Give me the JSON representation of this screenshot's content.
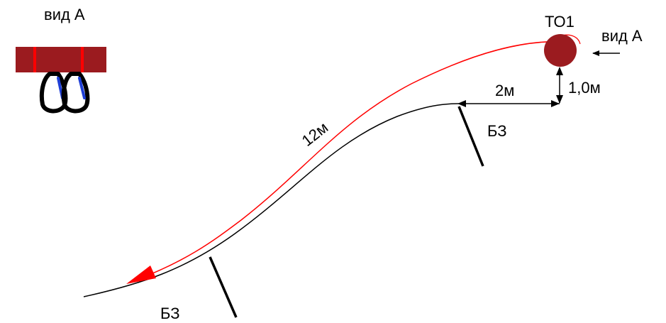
{
  "inset": {
    "view_label": "вид А"
  },
  "labels": {
    "tree_label": "ТО1",
    "view_arrow_label": "вид А",
    "length_label": "12м",
    "horizontal_distance": "2м",
    "vertical_distance": "1,0м",
    "belay_upper": "БЗ",
    "belay_lower": "БЗ"
  },
  "colors": {
    "rope": "#ff0000",
    "tree": "#9b1b1f",
    "strap": "#9b1b1f",
    "strap_marks": "#ff0000",
    "carabiner_gate": "#1f3fd6",
    "ground": "#000000"
  }
}
